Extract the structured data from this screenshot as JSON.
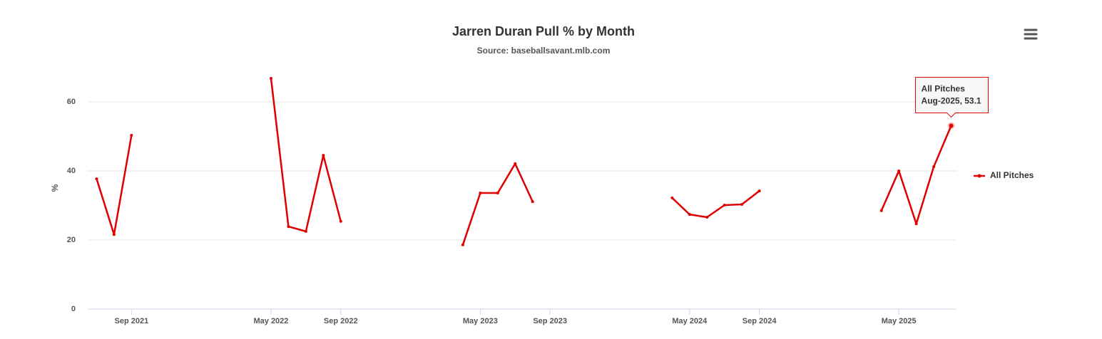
{
  "chart_data": {
    "type": "line",
    "title": "Jarren Duran Pull % by Month",
    "subtitle": "Source: baseballsavant.mlb.com",
    "y_label": "%",
    "x": [
      "2021-07",
      "2021-08",
      "2021-09",
      "2021-10",
      "2022-05",
      "2022-06",
      "2022-07",
      "2022-08",
      "2022-09",
      "2022-10",
      "2023-04",
      "2023-05",
      "2023-06",
      "2023-07",
      "2023-08",
      "2023-09",
      "2024-04",
      "2024-05",
      "2024-06",
      "2024-07",
      "2024-08",
      "2024-09",
      "2024-10",
      "2025-04",
      "2025-05",
      "2025-06",
      "2025-07",
      "2025-08"
    ],
    "series": [
      {
        "name": "All Pitches",
        "color": "#e00000",
        "values": [
          37.7,
          21.6,
          50.3,
          null,
          66.8,
          23.9,
          22.5,
          44.5,
          25.4,
          null,
          18.6,
          33.6,
          33.6,
          42.1,
          31.1,
          null,
          32.2,
          27.4,
          26.6,
          30.1,
          30.3,
          34.2,
          null,
          28.5,
          40.0,
          24.7,
          41.2,
          53.1
        ]
      }
    ],
    "xlim": [
      "2021-06",
      "2025-09"
    ],
    "xticks": [
      {
        "value": "2021-09",
        "label": "Sep 2021"
      },
      {
        "value": "2022-05",
        "label": "May 2022"
      },
      {
        "value": "2022-09",
        "label": "Sep 2022"
      },
      {
        "value": "2023-05",
        "label": "May 2023"
      },
      {
        "value": "2023-09",
        "label": "Sep 2023"
      },
      {
        "value": "2024-05",
        "label": "May 2024"
      },
      {
        "value": "2024-09",
        "label": "Sep 2024"
      },
      {
        "value": "2025-05",
        "label": "May 2025"
      }
    ],
    "ylim": [
      0,
      70
    ],
    "yticks": [
      0,
      20,
      40,
      60
    ],
    "grid": true,
    "legend": "right",
    "tooltip": {
      "text": "Aug-2025, 53.1"
    }
  }
}
